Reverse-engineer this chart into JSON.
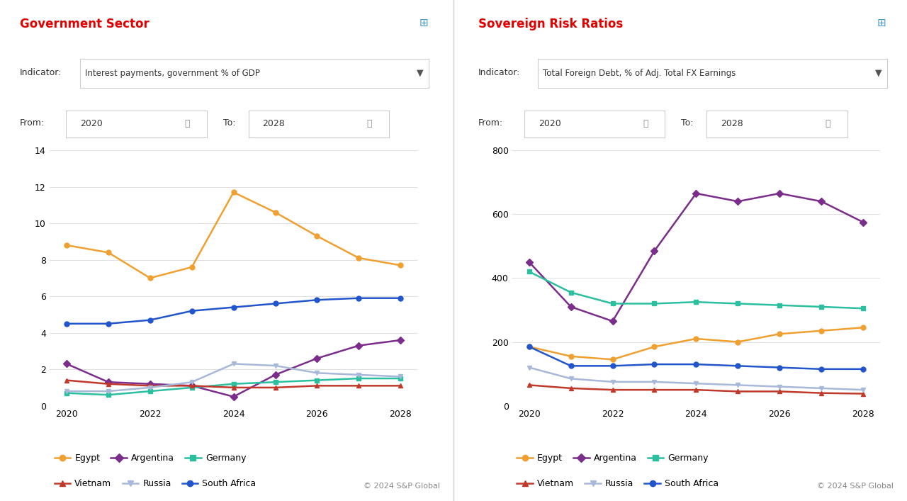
{
  "left_title": "Government Sector",
  "left_indicator": "Interest payments, government % of GDP",
  "left_from": "2020",
  "left_to": "2028",
  "right_title": "Sovereign Risk Ratios",
  "right_indicator": "Total Foreign Debt, % of Adj. Total FX Earnings",
  "right_from": "2020",
  "right_to": "2028",
  "years": [
    2020,
    2021,
    2022,
    2023,
    2024,
    2025,
    2026,
    2027,
    2028
  ],
  "left_data": {
    "Egypt": [
      8.8,
      8.4,
      7.0,
      7.6,
      11.7,
      10.6,
      9.3,
      8.1,
      7.7
    ],
    "Argentina": [
      2.3,
      1.3,
      1.2,
      1.1,
      0.5,
      1.7,
      2.6,
      3.3,
      3.6
    ],
    "Germany": [
      0.7,
      0.6,
      0.8,
      1.0,
      1.2,
      1.3,
      1.4,
      1.5,
      1.5
    ],
    "Vietnam": [
      1.4,
      1.2,
      1.1,
      1.1,
      1.0,
      1.0,
      1.1,
      1.1,
      1.1
    ],
    "Russia": [
      0.8,
      0.8,
      1.0,
      1.3,
      2.3,
      2.2,
      1.8,
      1.7,
      1.6
    ],
    "South Africa": [
      4.5,
      4.5,
      4.7,
      5.2,
      5.4,
      5.6,
      5.8,
      5.9,
      5.9
    ]
  },
  "right_data": {
    "Egypt": [
      185,
      155,
      145,
      185,
      210,
      200,
      225,
      235,
      245
    ],
    "Argentina": [
      450,
      310,
      265,
      485,
      665,
      640,
      665,
      640,
      575
    ],
    "Germany": [
      420,
      355,
      320,
      320,
      325,
      320,
      315,
      310,
      305
    ],
    "Vietnam": [
      65,
      55,
      50,
      50,
      50,
      45,
      45,
      40,
      38
    ],
    "Russia": [
      120,
      85,
      75,
      75,
      70,
      65,
      60,
      55,
      50
    ],
    "South Africa": [
      185,
      125,
      125,
      130,
      130,
      125,
      120,
      115,
      115
    ]
  },
  "colors": {
    "Egypt": "#f0a030",
    "Argentina": "#7b2d8b",
    "Germany": "#2bbfa0",
    "Vietnam": "#c0392b",
    "Russia": "#a8b8d8",
    "South Africa": "#2255cc"
  },
  "markers": {
    "Egypt": "o",
    "Argentina": "D",
    "Germany": "s",
    "Vietnam": "^",
    "Russia": "v",
    "South Africa": "o"
  },
  "left_ylim": [
    0,
    14
  ],
  "left_yticks": [
    0,
    2,
    4,
    6,
    8,
    10,
    12,
    14
  ],
  "right_ylim": [
    0,
    800
  ],
  "right_yticks": [
    0,
    200,
    400,
    600,
    800
  ],
  "footer": "© 2024 S&P Global",
  "bg_color": "#ffffff",
  "title_color": "#e00000",
  "grid_color": "#e0e0e0",
  "border_color": "#cccccc",
  "text_color": "#333333",
  "legend_countries_row1": [
    "Egypt",
    "Argentina",
    "Germany"
  ],
  "legend_countries_row2": [
    "Vietnam",
    "Russia",
    "South Africa"
  ]
}
